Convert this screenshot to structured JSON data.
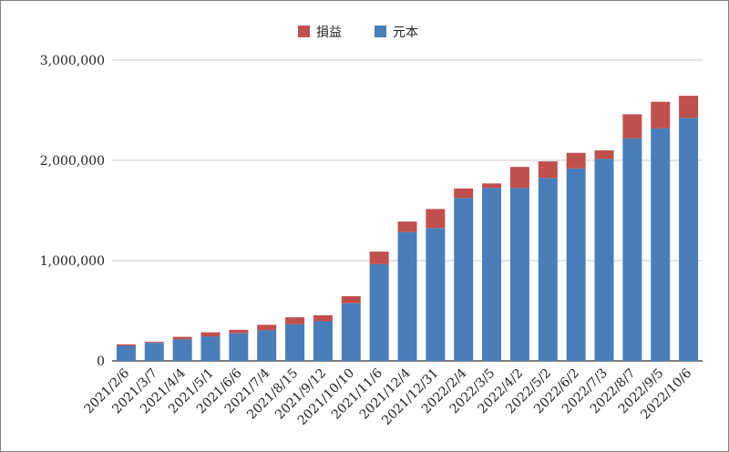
{
  "chart_data": {
    "type": "bar",
    "stacked": true,
    "title": "",
    "xlabel": "",
    "ylabel": "",
    "ylim": [
      0,
      3000000
    ],
    "y_ticks": [
      "0",
      "1,000,000",
      "2,000,000",
      "3,000,000"
    ],
    "y_tick_values": [
      0,
      1000000,
      2000000,
      3000000
    ],
    "grid": true,
    "legend_position": "top-center",
    "categories": [
      "2021/2/6",
      "2021/3/7",
      "2021/4/4",
      "2021/5/1",
      "2021/6/6",
      "2021/7/4",
      "2021/8/15",
      "2021/9/12",
      "2021/10/10",
      "2021/11/6",
      "2021/12/4",
      "2021/12/31",
      "2022/2/4",
      "2022/3/5",
      "2022/4/2",
      "2022/5/2",
      "2022/6/2",
      "2022/7/3",
      "2022/8/7",
      "2022/9/5",
      "2022/10/6"
    ],
    "series": [
      {
        "name": "元本",
        "color": "#4a7ebb",
        "values": [
          150000,
          180000,
          215000,
          245000,
          275000,
          305000,
          365000,
          395000,
          575000,
          965000,
          1285000,
          1325000,
          1625000,
          1725000,
          1725000,
          1825000,
          1920000,
          2015000,
          2220000,
          2320000,
          2425000
        ]
      },
      {
        "name": "損益",
        "color": "#c0504d",
        "values": [
          15000,
          10000,
          25000,
          40000,
          35000,
          55000,
          70000,
          60000,
          70000,
          125000,
          105000,
          190000,
          95000,
          45000,
          210000,
          165000,
          155000,
          85000,
          240000,
          265000,
          220000
        ]
      }
    ],
    "legend_order": [
      "損益",
      "元本"
    ]
  }
}
